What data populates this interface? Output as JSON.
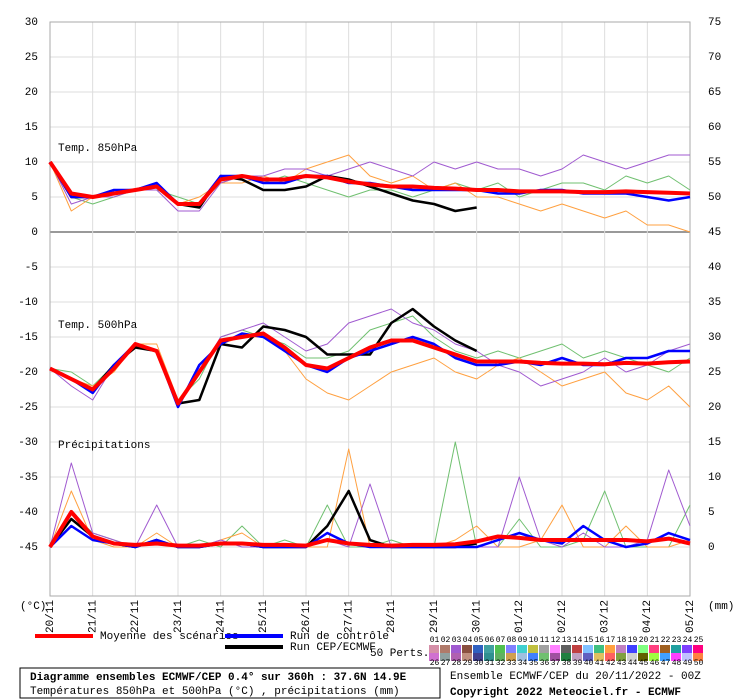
{
  "chart_data": {
    "type": "line",
    "y_unit": "(°C)",
    "y2_unit": "(mm)",
    "x": [
      0,
      12,
      24,
      36,
      48,
      60,
      72,
      84,
      96,
      108,
      120,
      132,
      144,
      156,
      168,
      180,
      192,
      204,
      216,
      228,
      240,
      252,
      264,
      276,
      288,
      300,
      312,
      324,
      336,
      348,
      360
    ],
    "xlim": [
      0,
      360
    ],
    "xticks": [
      {
        "value": 0,
        "label": "20/11"
      },
      {
        "value": 24,
        "label": "21/11"
      },
      {
        "value": 48,
        "label": "22/11"
      },
      {
        "value": 72,
        "label": "23/11"
      },
      {
        "value": 96,
        "label": "24/11"
      },
      {
        "value": 120,
        "label": "25/11"
      },
      {
        "value": 144,
        "label": "26/11"
      },
      {
        "value": 168,
        "label": "27/11"
      },
      {
        "value": 192,
        "label": "28/11"
      },
      {
        "value": 216,
        "label": "29/11"
      },
      {
        "value": 240,
        "label": "30/11"
      },
      {
        "value": 264,
        "label": "01/12"
      },
      {
        "value": 288,
        "label": "02/12"
      },
      {
        "value": 312,
        "label": "03/12"
      },
      {
        "value": 336,
        "label": "04/12"
      },
      {
        "value": 360,
        "label": "05/12"
      }
    ],
    "ylim": [
      -52,
      30
    ],
    "yticks": [
      30,
      25,
      20,
      15,
      10,
      5,
      0,
      -5,
      -10,
      -15,
      -20,
      -25,
      -30,
      -35,
      -40,
      -45
    ],
    "y2lim": [
      -7,
      75
    ],
    "y2ticks": [
      75,
      70,
      65,
      60,
      55,
      50,
      45,
      40,
      35,
      30,
      25,
      20,
      15,
      10,
      5,
      0
    ],
    "grid": true,
    "panels": [
      {
        "label": "Temp. 850hPa",
        "series": [
          {
            "name": "Moyenne des scénarios",
            "color": "#ff0000",
            "values": [
              10,
              5.5,
              5,
              5.5,
              6,
              6.5,
              4,
              4,
              7.5,
              8,
              7.5,
              7.5,
              8,
              7.8,
              7.2,
              6.8,
              6.5,
              6.5,
              6.3,
              6.2,
              6,
              6,
              5.8,
              5.8,
              5.8,
              5.7,
              5.7,
              5.8,
              5.7,
              5.6,
              5.5
            ]
          },
          {
            "name": "Run de contrôle",
            "color": "#0000ff",
            "values": [
              10,
              5,
              5,
              6,
              6,
              7,
              4,
              4,
              8,
              8,
              7,
              7,
              8,
              8,
              7,
              7,
              6.5,
              6,
              6,
              6,
              6,
              5.5,
              5.5,
              6,
              6,
              5.5,
              5.5,
              5.5,
              5,
              4.5,
              5
            ]
          },
          {
            "name": "Run CEP/ECMWF",
            "color": "#000000",
            "values": [
              10,
              5,
              5,
              5.5,
              6,
              6.5,
              4,
              3.5,
              8,
              7.5,
              6,
              6,
              6.5,
              8,
              7.5,
              6.5,
              5.5,
              4.5,
              4,
              3,
              3.5,
              null,
              null,
              null,
              null,
              null,
              null,
              null,
              null,
              null,
              null
            ]
          },
          {
            "name": "03",
            "color": "#a05ad0",
            "values": [
              10,
              4,
              5,
              5,
              6,
              6,
              3,
              3,
              7,
              8,
              8,
              9,
              9,
              8,
              9,
              10,
              9,
              8,
              10,
              9,
              10,
              9,
              9,
              8,
              9,
              11,
              10,
              9,
              10,
              11,
              11
            ]
          },
          {
            "name": "17",
            "color": "#ffa040",
            "values": [
              10,
              3,
              5,
              6,
              6,
              7,
              4,
              5,
              7,
              7,
              8,
              7,
              9,
              10,
              11,
              8,
              7,
              8,
              6,
              7,
              5,
              5,
              4,
              3,
              4,
              3,
              2,
              3,
              1,
              1,
              0
            ]
          },
          {
            "name": "36",
            "color": "#70c070",
            "values": [
              10,
              5,
              4,
              5,
              6,
              6,
              5,
              4,
              7,
              8,
              7,
              8,
              7,
              6,
              5,
              6,
              6,
              5,
              6,
              7,
              6,
              7,
              5,
              6,
              7,
              7,
              6,
              8,
              7,
              8,
              6
            ]
          }
        ]
      },
      {
        "label": "Temp. 500hPa",
        "series": [
          {
            "name": "Moyenne des scénarios",
            "color": "#ff0000",
            "values": [
              -19.5,
              -21,
              -22.5,
              -19.5,
              -16,
              -17,
              -24.5,
              -20,
              -15.5,
              -15,
              -14.5,
              -16.5,
              -19,
              -19.5,
              -18,
              -16.5,
              -15.5,
              -15.5,
              -16.5,
              -17.5,
              -18.5,
              -18.5,
              -18.5,
              -18.7,
              -18.8,
              -18.8,
              -18.9,
              -18.7,
              -18.8,
              -18.6,
              -18.5
            ]
          },
          {
            "name": "Run de contrôle",
            "color": "#0000ff",
            "values": [
              -19.5,
              -21,
              -23,
              -19,
              -16,
              -17,
              -25,
              -19,
              -16,
              -14.5,
              -15,
              -17,
              -19,
              -20,
              -18,
              -17,
              -16,
              -15,
              -16,
              -18,
              -19,
              -19,
              -18.5,
              -19,
              -18,
              -19,
              -19,
              -18,
              -18,
              -17,
              -17
            ]
          },
          {
            "name": "Run CEP/ECMWF",
            "color": "#000000",
            "values": [
              -19.5,
              -21,
              -22.5,
              -19,
              -16.5,
              -17,
              -24.5,
              -24,
              -16,
              -16.5,
              -13.5,
              -14,
              -15,
              -17.5,
              -17.5,
              -17.5,
              -13,
              -11,
              -13.5,
              -15.5,
              -17,
              null,
              null,
              null,
              null,
              null,
              null,
              null,
              null,
              null,
              null
            ]
          },
          {
            "name": "03",
            "color": "#a05ad0",
            "values": [
              -19.5,
              -22,
              -24,
              -19,
              -16,
              -17,
              -25,
              -20,
              -15,
              -14,
              -13,
              -15,
              -17,
              -16,
              -13,
              -12,
              -11,
              -13,
              -14,
              -16,
              -17,
              -19,
              -20,
              -22,
              -21,
              -20,
              -18,
              -20,
              -19,
              -17,
              -16
            ]
          },
          {
            "name": "17",
            "color": "#ffa040",
            "values": [
              -19.5,
              -21,
              -22,
              -20,
              -16,
              -16,
              -24,
              -20,
              -16,
              -15,
              -15,
              -17,
              -21,
              -23,
              -24,
              -22,
              -20,
              -19,
              -18,
              -20,
              -21,
              -19,
              -18,
              -20,
              -22,
              -21,
              -20,
              -23,
              -24,
              -22,
              -25
            ]
          },
          {
            "name": "36",
            "color": "#70c070",
            "values": [
              -19.5,
              -20,
              -22,
              -19,
              -16,
              -17,
              -24,
              -21,
              -15,
              -14,
              -15,
              -16,
              -18,
              -18,
              -17,
              -14,
              -13,
              -12,
              -15,
              -17,
              -18,
              -17,
              -18,
              -17,
              -16,
              -18,
              -17,
              -18,
              -19,
              -20,
              -18
            ]
          }
        ]
      },
      {
        "label": "Précipitations",
        "series": [
          {
            "name": "Moyenne des scénarios",
            "color": "#ff0000",
            "axis": "y2",
            "values": [
              0,
              5,
              1.5,
              0.5,
              0.3,
              0.5,
              0.2,
              0.2,
              0.5,
              0.5,
              0.3,
              0.3,
              0.2,
              1,
              0.5,
              0.3,
              0.2,
              0.3,
              0.3,
              0.4,
              0.8,
              1.5,
              1.3,
              1,
              1,
              1,
              1,
              1,
              0.8,
              1.2,
              0.5
            ]
          },
          {
            "name": "Run de contrôle",
            "color": "#0000ff",
            "axis": "y2",
            "values": [
              0,
              3,
              1,
              0.5,
              0,
              1,
              0,
              0,
              0.5,
              0.5,
              0,
              0,
              0,
              2,
              0.5,
              0,
              0,
              0,
              0,
              0,
              0,
              1,
              2,
              1,
              0.5,
              3,
              1,
              0,
              0.5,
              2,
              1
            ]
          },
          {
            "name": "Run CEP/ECMWF",
            "color": "#000000",
            "axis": "y2",
            "values": [
              0,
              4,
              1.5,
              0.5,
              0,
              1,
              0,
              0,
              0.5,
              0.5,
              0,
              0,
              0,
              3,
              8,
              1,
              0,
              0,
              0,
              0,
              0.5,
              null,
              null,
              null,
              null,
              null,
              null,
              null,
              null,
              null,
              null
            ]
          },
          {
            "name": "03",
            "color": "#a05ad0",
            "axis": "y2",
            "values": [
              0,
              12,
              2,
              1,
              0,
              6,
              0,
              0,
              1,
              0,
              0,
              0,
              0,
              1,
              0,
              9,
              0,
              0,
              0,
              0,
              0,
              0,
              10,
              1,
              0,
              2,
              0,
              0,
              1,
              11,
              3
            ]
          },
          {
            "name": "17",
            "color": "#ffa040",
            "axis": "y2",
            "values": [
              0,
              8,
              1,
              0,
              0,
              2,
              0,
              0,
              1,
              2,
              0,
              0,
              0,
              0,
              14,
              0,
              0,
              0,
              0,
              1,
              3,
              0,
              0,
              1,
              6,
              0,
              0,
              3,
              0,
              0,
              1
            ]
          },
          {
            "name": "36",
            "color": "#70c070",
            "axis": "y2",
            "values": [
              0,
              5,
              2,
              1,
              0,
              1,
              0,
              1,
              0,
              3,
              0,
              1,
              0,
              6,
              0,
              0,
              1,
              0,
              0,
              15,
              0,
              0,
              4,
              0,
              0,
              1,
              8,
              0,
              0,
              0,
              6
            ]
          }
        ]
      }
    ],
    "perts": {
      "label": "50 Perts.",
      "names": [
        "01",
        "02",
        "03",
        "04",
        "05",
        "06",
        "07",
        "08",
        "09",
        "10",
        "11",
        "12",
        "13",
        "14",
        "15",
        "16",
        "17",
        "18",
        "19",
        "20",
        "21",
        "22",
        "23",
        "24",
        "25",
        "26",
        "27",
        "28",
        "29",
        "30",
        "31",
        "32",
        "33",
        "34",
        "35",
        "36",
        "37",
        "38",
        "39",
        "40",
        "41",
        "42",
        "43",
        "44",
        "45",
        "46",
        "47",
        "48",
        "49",
        "50"
      ],
      "colors": [
        "#d58fa8",
        "#b07a6a",
        "#a05ad0",
        "#8a5040",
        "#3060c0",
        "#40a0a0",
        "#50c050",
        "#8080ff",
        "#40d0d0",
        "#c0c040",
        "#a0a0a0",
        "#ff80ff",
        "#606060",
        "#c04040",
        "#80c0ff",
        "#40c080",
        "#ffa040",
        "#c080c0",
        "#4040ff",
        "#80ff80",
        "#ff4080",
        "#a06020",
        "#20a0a0",
        "#8040ff",
        "#ff0080",
        "#d070d0",
        "#90a0a0",
        "#b060b0",
        "#c09080",
        "#404090",
        "#309090",
        "#60b060",
        "#d0a050",
        "#a0c0e0",
        "#4080ff",
        "#70c070",
        "#a050a0",
        "#208040",
        "#c0a0c0",
        "#6060c0",
        "#e0c060",
        "#ff6060",
        "#80a040",
        "#d0d0d0",
        "#606000",
        "#a0ff40",
        "#40a0ff",
        "#ff40ff",
        "#c0c0ff",
        "#ff8040"
      ]
    }
  },
  "footer": {
    "title": "Diagramme ensembles ECMWF/CEP 0.4° sur 360h : 37.6N 14.9E",
    "subtitle": "Températures 850hPa et 500hPa (°C) , précipitations (mm)",
    "run": "Ensemble ECMWF/CEP du 20/11/2022 - 00Z",
    "copyright": "Copyright 2022 Meteociel.fr - ECMWF"
  }
}
